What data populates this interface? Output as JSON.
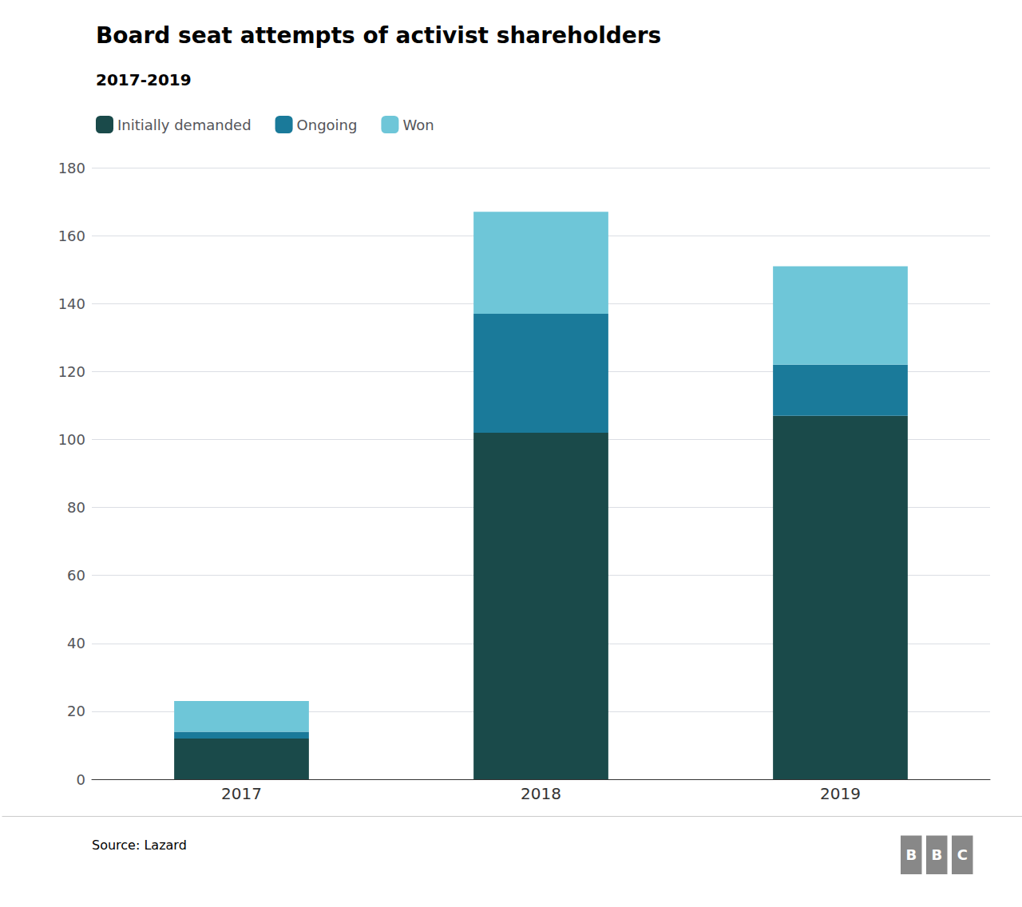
{
  "chart_data": {
    "type": "bar",
    "title": "Board seat attempts of activist shareholders",
    "subtitle": "2017-2019",
    "categories": [
      "2017",
      "2018",
      "2019"
    ],
    "series": [
      {
        "name": "Initially demanded",
        "color": "#1a4a4a",
        "values": [
          12,
          102,
          107
        ]
      },
      {
        "name": "Ongoing",
        "color": "#1a7a9a",
        "values": [
          2,
          35,
          15
        ]
      },
      {
        "name": "Won",
        "color": "#6ec6d8",
        "values": [
          9,
          30,
          29
        ]
      }
    ],
    "stacked": true,
    "ylim": [
      0,
      180
    ],
    "yticks": [
      0,
      20,
      40,
      60,
      80,
      100,
      120,
      140,
      160,
      180
    ],
    "grid": true,
    "legend": "upper left",
    "annotations": [
      "Source: Lazard",
      "BBC"
    ]
  }
}
